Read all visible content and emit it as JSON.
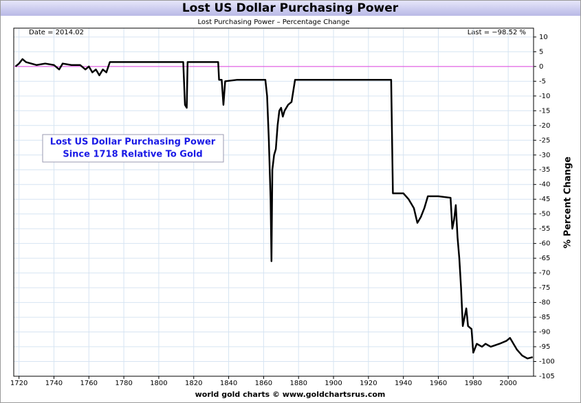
{
  "chart_data": {
    "type": "line",
    "title": "Lost US Dollar Purchasing Power",
    "subtitle": "Lost Purchasing Power – Percentage Change",
    "date_label": "Date = 2014.02",
    "last_label": "Last = −98.52 %",
    "annotation": [
      "Lost US Dollar Purchasing Power",
      "Since 1718 Relative To Gold"
    ],
    "ylabel": "% Percent Change",
    "footer": "world gold charts © www.goldchartsrus.com",
    "reference_line": 0,
    "reference_color": "#e040e0",
    "grid": true,
    "xlim": [
      1717,
      2014.5
    ],
    "xticks": [
      1720,
      1740,
      1760,
      1780,
      1800,
      1820,
      1840,
      1860,
      1880,
      1900,
      1920,
      1940,
      1960,
      1980,
      2000
    ],
    "ylim": [
      -105,
      13
    ],
    "yticks": [
      10,
      5,
      0,
      -5,
      -10,
      -15,
      -20,
      -25,
      -30,
      -35,
      -40,
      -45,
      -50,
      -55,
      -60,
      -65,
      -70,
      -75,
      -80,
      -85,
      -90,
      -95,
      -100,
      -105
    ],
    "x": [
      1718,
      1720,
      1722,
      1724,
      1730,
      1735,
      1740,
      1743,
      1745,
      1750,
      1755,
      1758,
      1760,
      1762,
      1764,
      1766,
      1768,
      1770,
      1772,
      1780,
      1785,
      1800,
      1814,
      1815,
      1816,
      1816.5,
      1820,
      1834,
      1834.5,
      1836,
      1837,
      1838,
      1845,
      1861,
      1862,
      1863,
      1864,
      1864.5,
      1865,
      1866,
      1867,
      1868,
      1869,
      1870,
      1871,
      1872,
      1874,
      1876,
      1878,
      1900,
      1933,
      1934,
      1940,
      1943,
      1946,
      1948,
      1950,
      1952,
      1954,
      1960,
      1967,
      1968,
      1969,
      1970,
      1971,
      1972,
      1973,
      1974,
      1975,
      1976,
      1977,
      1979,
      1980,
      1982,
      1985,
      1987,
      1990,
      1995,
      1999,
      2001,
      2005,
      2008,
      2011,
      2014
    ],
    "series": [
      {
        "name": "Lost Purchasing Power",
        "color": "#000000",
        "values": [
          0,
          1,
          2.5,
          1.5,
          0.5,
          1,
          0.5,
          -1,
          1,
          0.5,
          0.5,
          -1,
          0,
          -2,
          -1,
          -3,
          -1,
          -2,
          1.5,
          1.5,
          1.5,
          1.5,
          1.5,
          -13,
          -14,
          1.5,
          1.5,
          1.5,
          -4.5,
          -4.5,
          -13,
          -5,
          -4.5,
          -4.5,
          -10,
          -25,
          -45,
          -66,
          -35,
          -30,
          -28,
          -20,
          -15,
          -14,
          -17,
          -15,
          -13,
          -12,
          -4.5,
          -4.5,
          -4.5,
          -43,
          -43,
          -45,
          -48,
          -53,
          -51,
          -48,
          -44,
          -44,
          -44.5,
          -55,
          -52,
          -47,
          -58,
          -65,
          -75,
          -88,
          -85,
          -82,
          -88,
          -89,
          -97,
          -94,
          -95,
          -94,
          -95,
          -94,
          -93,
          -92,
          -96,
          -98,
          -99,
          -98.52
        ]
      }
    ]
  }
}
